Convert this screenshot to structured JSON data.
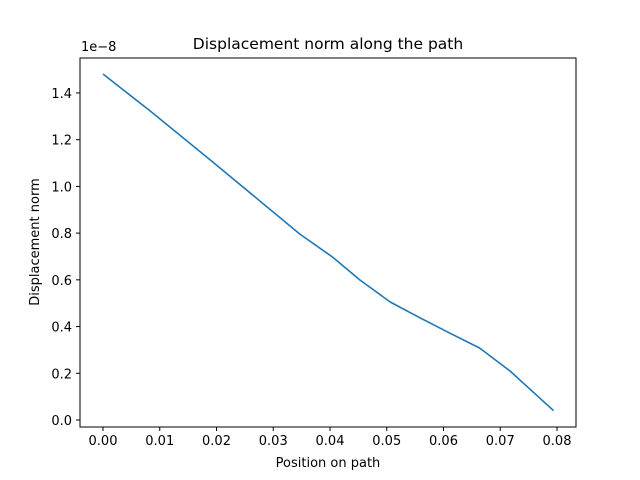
{
  "chart_data": {
    "type": "line",
    "title": "Displacement norm along the path",
    "xlabel": "Position on path",
    "ylabel": "Displacement norm",
    "y_offset_label": "1e−8",
    "xlim": [
      -0.004,
      0.083
    ],
    "ylim": [
      -0.03,
      1.55
    ],
    "x_ticks": [
      "0.00",
      "0.01",
      "0.02",
      "0.03",
      "0.04",
      "0.05",
      "0.06",
      "0.07",
      "0.08"
    ],
    "y_ticks": [
      "0.0",
      "0.2",
      "0.4",
      "0.6",
      "0.8",
      "1.0",
      "1.2",
      "1.4"
    ],
    "grid": false,
    "legend": null,
    "series": [
      {
        "name": "Displacement norm",
        "color": "#1f77b4",
        "x": [
          0.0,
          0.0083,
          0.0189,
          0.0347,
          0.0404,
          0.0453,
          0.0506,
          0.0559,
          0.0611,
          0.0664,
          0.0717,
          0.0794
        ],
        "y": [
          1.481,
          1.323,
          1.113,
          0.796,
          0.698,
          0.599,
          0.505,
          0.437,
          0.372,
          0.308,
          0.21,
          0.04
        ]
      }
    ]
  }
}
